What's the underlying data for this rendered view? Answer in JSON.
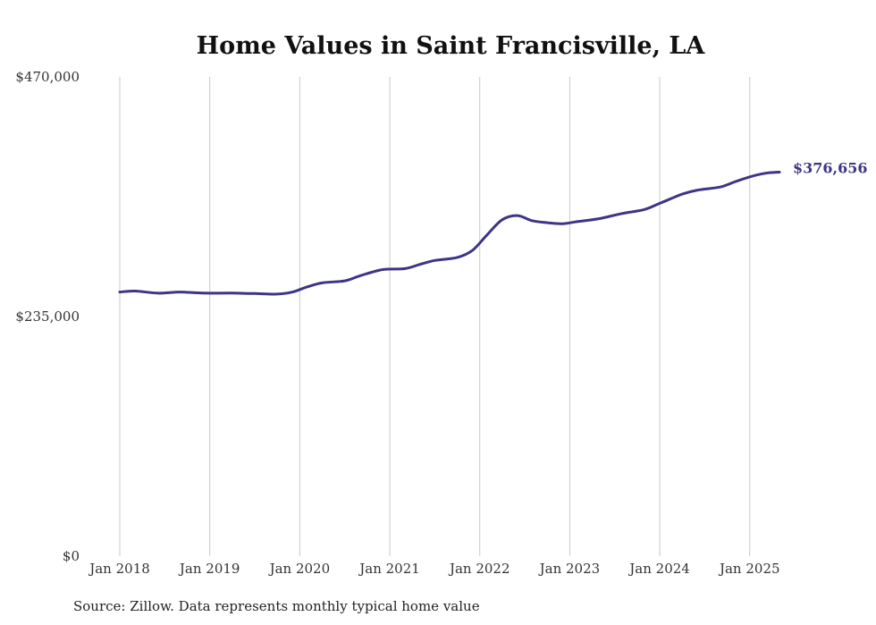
{
  "chart_data": {
    "type": "line",
    "title": "Home Values in Saint Francisville, LA",
    "xlabel": "",
    "ylabel": "",
    "ylim": [
      0,
      470000
    ],
    "y_ticks": [
      {
        "value": 0,
        "label": "$0"
      },
      {
        "value": 235000,
        "label": "$235,000"
      },
      {
        "value": 470000,
        "label": "$470,000"
      }
    ],
    "x_ticks": [
      {
        "value": 2018,
        "label": "Jan 2018"
      },
      {
        "value": 2019,
        "label": "Jan 2019"
      },
      {
        "value": 2020,
        "label": "Jan 2020"
      },
      {
        "value": 2021,
        "label": "Jan 2021"
      },
      {
        "value": 2022,
        "label": "Jan 2022"
      },
      {
        "value": 2023,
        "label": "Jan 2023"
      },
      {
        "value": 2024,
        "label": "Jan 2024"
      },
      {
        "value": 2025,
        "label": "Jan 2025"
      }
    ],
    "xlim": [
      2018,
      2025.35
    ],
    "grid": "vertical",
    "line_color": "#3d3585",
    "series": [
      {
        "x": [
          2018.0,
          2018.17,
          2018.42,
          2018.67,
          2018.92,
          2019.25,
          2019.5,
          2019.75,
          2019.92,
          2020.08,
          2020.25,
          2020.5,
          2020.67,
          2020.92,
          2021.17,
          2021.33,
          2021.5,
          2021.75,
          2021.92,
          2022.08,
          2022.25,
          2022.42,
          2022.58,
          2022.75,
          2022.92,
          2023.08,
          2023.33,
          2023.58,
          2023.83,
          2024.0,
          2024.25,
          2024.42,
          2024.67,
          2024.83,
          2025.0,
          2025.17,
          2025.33
        ],
        "values": [
          259000,
          260000,
          258000,
          259000,
          258000,
          258000,
          257500,
          257000,
          259000,
          264000,
          268000,
          270000,
          275000,
          281000,
          282000,
          286000,
          290000,
          293000,
          300000,
          315000,
          330000,
          334000,
          329000,
          327000,
          326000,
          328000,
          331000,
          336000,
          340000,
          346000,
          355000,
          359000,
          362000,
          367000,
          372000,
          375500,
          376656
        ]
      }
    ],
    "end_label": "$376,656",
    "source": "Source: Zillow. Data represents monthly typical home value"
  }
}
